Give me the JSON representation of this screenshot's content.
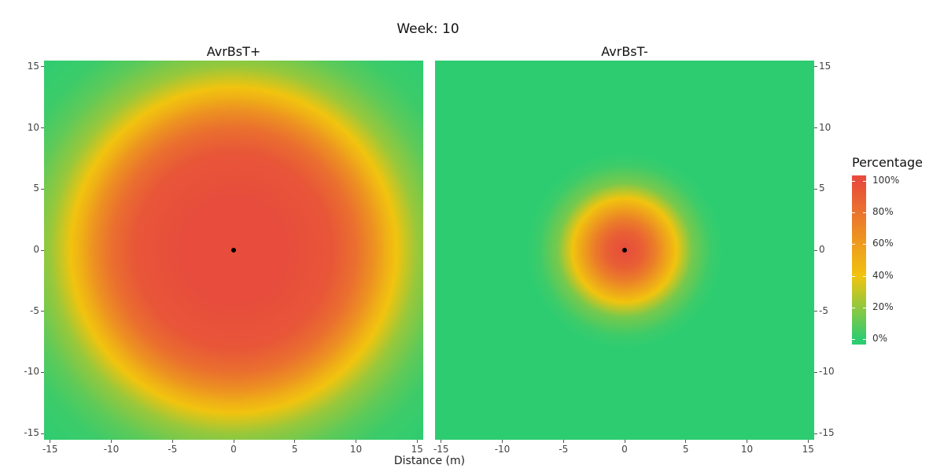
{
  "chart_data": {
    "type": "heatmap",
    "title": "Week: 10",
    "xlabel": "Distance (m)",
    "ylabel": "",
    "xlim": [
      -15.5,
      15.5
    ],
    "ylim": [
      -15.5,
      15.5
    ],
    "x_ticks": [
      -15,
      -10,
      -5,
      0,
      5,
      10,
      15
    ],
    "y_ticks": [
      -15,
      -10,
      -5,
      0,
      5,
      10,
      15
    ],
    "x_tick_labels": [
      "-15",
      "-10",
      "-5",
      "0",
      "5",
      "10",
      "15"
    ],
    "y_tick_labels": [
      "-15",
      "-10",
      "-5",
      "0",
      "5",
      "10",
      "15"
    ],
    "panels": [
      {
        "title": "AvrBsT+",
        "center": [
          0,
          0
        ],
        "radial_profile": {
          "distance_m": [
            0,
            4,
            8,
            10,
            11.5,
            12.5,
            13.5,
            15,
            17,
            19,
            22
          ],
          "percentage": [
            100,
            100,
            95,
            82,
            65,
            50,
            38,
            22,
            10,
            3,
            0
          ]
        }
      },
      {
        "title": "AvrBsT-",
        "center": [
          0,
          0
        ],
        "radial_profile": {
          "distance_m": [
            0,
            1.5,
            2.5,
            3.5,
            4.5,
            5.5,
            7,
            8
          ],
          "percentage": [
            100,
            90,
            75,
            55,
            35,
            15,
            3,
            0
          ]
        }
      }
    ],
    "legend": {
      "title": "Percentage",
      "position": "right",
      "breaks": [
        100,
        80,
        60,
        40,
        20,
        0
      ],
      "labels": [
        "100%",
        "80%",
        "60%",
        "40%",
        "20%",
        "0%"
      ]
    },
    "colors": {
      "0": "#2ecc71",
      "40": "#f1c40f",
      "100": "#e74c3c"
    },
    "grid": false
  }
}
